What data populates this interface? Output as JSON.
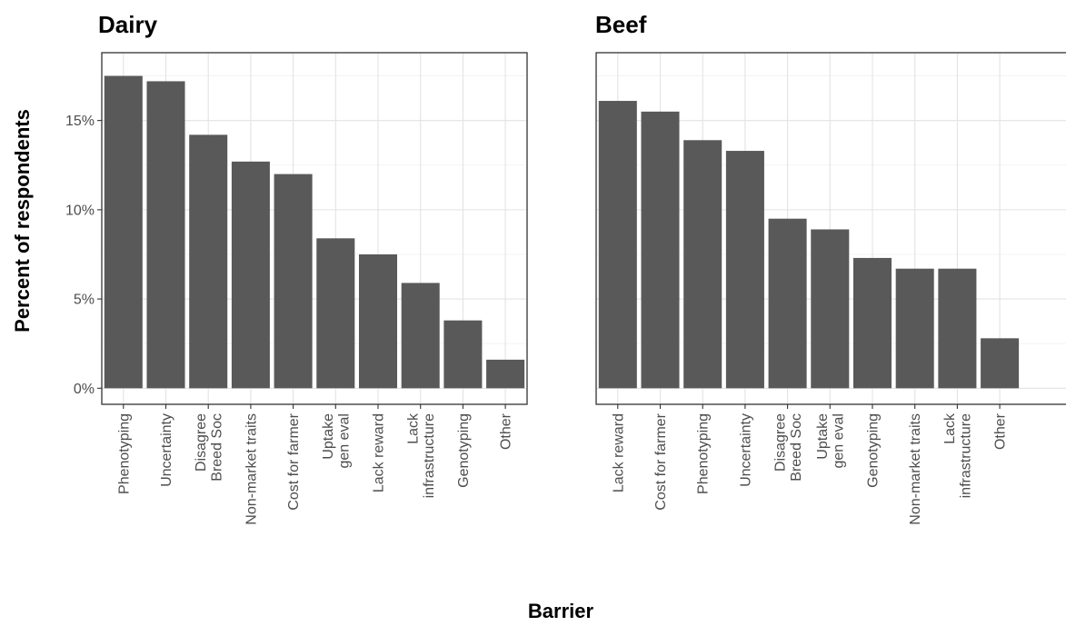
{
  "chart_data": [
    {
      "type": "bar",
      "title": "Dairy",
      "categories": [
        [
          "Phenotyping"
        ],
        [
          "Uncertainty"
        ],
        [
          "Disagree",
          "Breed Soc"
        ],
        [
          "Non-market traits"
        ],
        [
          "Cost for farmer"
        ],
        [
          "Uptake",
          "gen eval"
        ],
        [
          "Lack reward"
        ],
        [
          "Lack",
          "infrastructure"
        ],
        [
          "Genotyping"
        ],
        [
          "Other"
        ]
      ],
      "values": [
        17.5,
        17.2,
        14.2,
        12.7,
        12.0,
        8.4,
        7.5,
        5.9,
        3.8,
        1.6
      ],
      "ylim": [
        -0.9,
        18.8
      ],
      "yticks": [
        0,
        5,
        10,
        15
      ],
      "ytick_labels": [
        "0%",
        "5%",
        "10%",
        "15%"
      ],
      "ylabel": "Percent of respondents",
      "xlabel": "Barrier",
      "color": "#595959",
      "grid": true
    },
    {
      "type": "bar",
      "title": "Beef",
      "categories": [
        [
          "Lack reward"
        ],
        [
          "Cost for farmer"
        ],
        [
          "Phenotyping"
        ],
        [
          "Uncertainty"
        ],
        [
          "Disagree",
          "Breed Soc"
        ],
        [
          "Uptake",
          "gen eval"
        ],
        [
          "Genotyping"
        ],
        [
          "Non-market traits"
        ],
        [
          "Lack",
          "infrastructure"
        ],
        [
          "Other"
        ]
      ],
      "values": [
        16.1,
        15.5,
        13.9,
        13.3,
        9.5,
        8.9,
        7.3,
        6.7,
        6.7,
        2.8
      ],
      "ylim": [
        -0.9,
        18.8
      ],
      "yticks": [
        0,
        5,
        10,
        15
      ],
      "color": "#595959",
      "grid": true
    }
  ],
  "shared": {
    "ylabel": "Percent of respondents",
    "xlabel": "Barrier"
  }
}
